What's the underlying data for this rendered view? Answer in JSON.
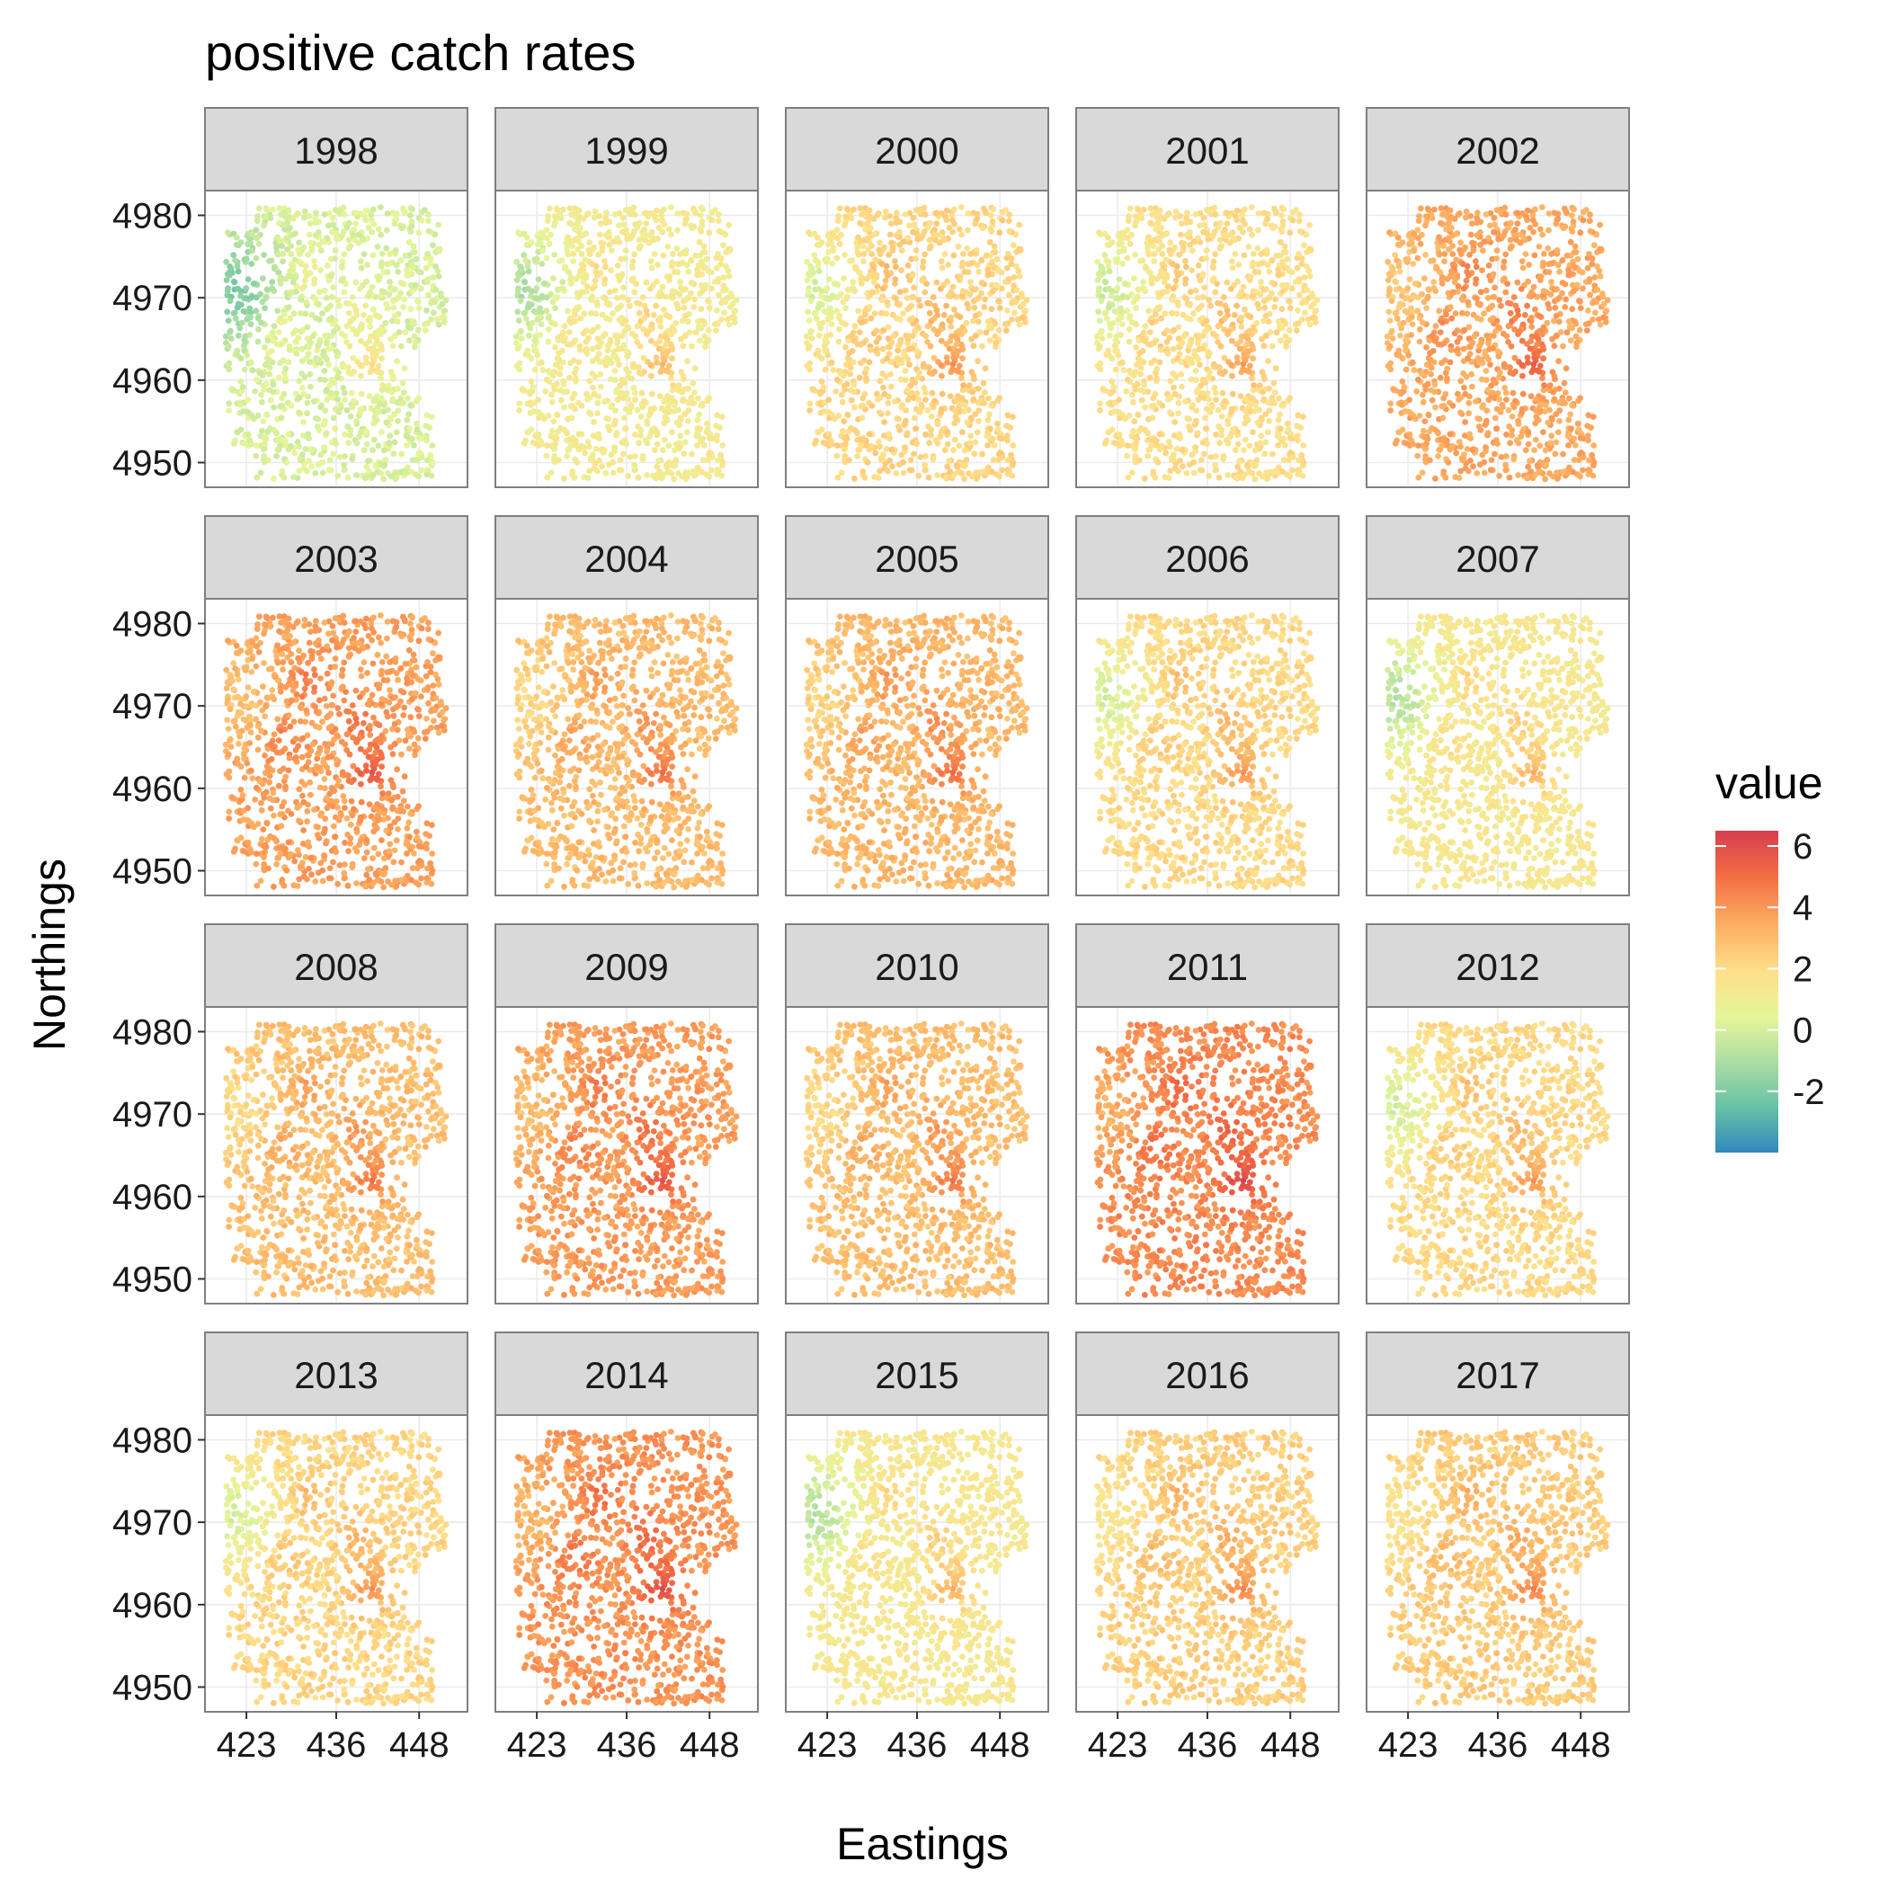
{
  "chart_data": {
    "type": "scatter",
    "title": "positive catch rates",
    "xlabel": "Eastings",
    "ylabel": "Northings",
    "facet_by": "year",
    "facets": [
      "1998",
      "1999",
      "2000",
      "2001",
      "2002",
      "2003",
      "2004",
      "2005",
      "2006",
      "2007",
      "2008",
      "2009",
      "2010",
      "2011",
      "2012",
      "2013",
      "2014",
      "2015",
      "2016",
      "2017"
    ],
    "facet_mean_value": [
      0.2,
      1.3,
      2.3,
      2.0,
      3.6,
      3.8,
      3.1,
      3.2,
      2.2,
      1.5,
      3.0,
      3.9,
      3.0,
      4.3,
      2.2,
      2.3,
      4.1,
      1.5,
      2.5,
      2.6
    ],
    "x_ticks": [
      423,
      436,
      448
    ],
    "y_ticks": [
      4950,
      4960,
      4970,
      4980
    ],
    "x_tick_labels": [
      "423",
      "436",
      "448"
    ],
    "y_tick_labels": [
      "4950",
      "4960",
      "4970",
      "4980"
    ],
    "xlim": [
      417,
      455
    ],
    "ylim": [
      4947,
      4983
    ],
    "hotspots": [
      {
        "x": 441,
        "y": 4962,
        "strength": 1.6
      },
      {
        "x": 439,
        "y": 4968,
        "strength": 1.0
      },
      {
        "x": 432,
        "y": 4973,
        "strength": 0.8
      },
      {
        "x": 428,
        "y": 4966,
        "strength": 0.7
      }
    ],
    "cool_zone": {
      "x": 421,
      "y": 4971
    },
    "legend": {
      "title": "value",
      "position": "right",
      "labels": [
        "6",
        "4",
        "2",
        "0",
        "-2"
      ],
      "tick_values": [
        6,
        4,
        2,
        0,
        -2
      ],
      "range": [
        -4,
        6.5
      ],
      "palette": [
        "#3288bd",
        "#66c2a5",
        "#abdda4",
        "#e6f598",
        "#fee08b",
        "#fdae61",
        "#f46d43",
        "#d53e4f"
      ]
    },
    "grid": true
  }
}
